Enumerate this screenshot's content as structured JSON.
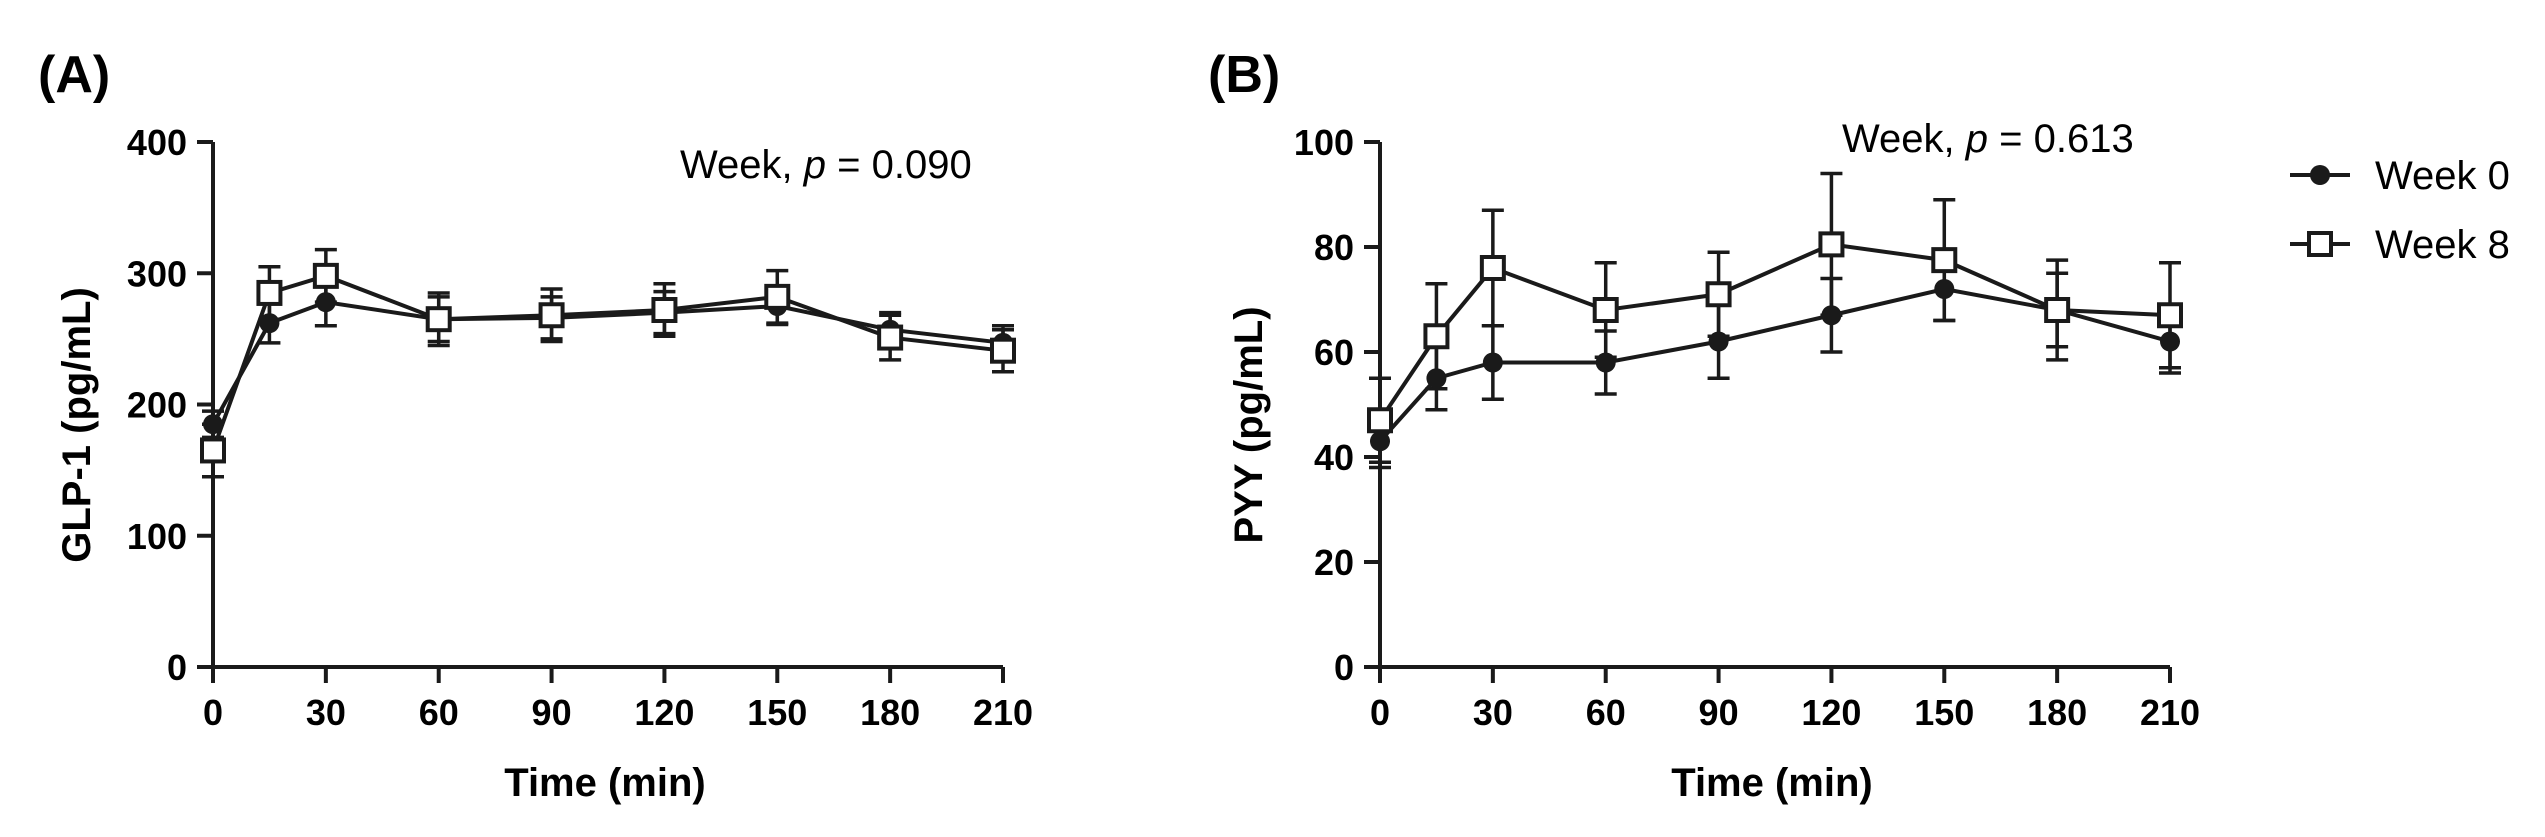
{
  "chart_data": [
    {
      "panel_label": "(A)",
      "type": "line",
      "annotation": {
        "prefix": "Week, ",
        "p_symbol": "p",
        "suffix": " = 0.090"
      },
      "xlabel": "Time (min)",
      "ylabel": "GLP-1 (pg/mL)",
      "xlim": [
        0,
        210
      ],
      "ylim": [
        0,
        400
      ],
      "xticks": [
        0,
        30,
        60,
        90,
        120,
        150,
        180,
        210
      ],
      "yticks": [
        0,
        100,
        200,
        300,
        400
      ],
      "x": [
        0,
        15,
        30,
        60,
        90,
        120,
        150,
        180,
        210
      ],
      "series": [
        {
          "name": "Week 0",
          "marker": "filled-circle",
          "values": [
            185,
            262,
            278,
            265,
            266,
            270,
            275,
            257,
            247
          ],
          "errors": [
            10,
            15,
            18,
            17,
            16,
            16,
            14,
            13,
            13
          ]
        },
        {
          "name": "Week 8",
          "marker": "open-square",
          "values": [
            165,
            285,
            298,
            265,
            268,
            272,
            282,
            251,
            241
          ],
          "errors": [
            20,
            20,
            20,
            20,
            20,
            20,
            20,
            17,
            16
          ]
        }
      ]
    },
    {
      "panel_label": "(B)",
      "type": "line",
      "annotation": {
        "prefix": "Week, ",
        "p_symbol": "p",
        "suffix": " = 0.613"
      },
      "xlabel": "Time (min)",
      "ylabel": "PYY (pg/mL)",
      "xlim": [
        0,
        210
      ],
      "ylim": [
        0,
        100
      ],
      "xticks": [
        0,
        30,
        60,
        90,
        120,
        150,
        180,
        210
      ],
      "yticks": [
        0,
        20,
        40,
        60,
        80,
        100
      ],
      "x": [
        0,
        15,
        30,
        60,
        90,
        120,
        150,
        180,
        210
      ],
      "series": [
        {
          "name": "Week 0",
          "marker": "filled-circle",
          "values": [
            43,
            55,
            58,
            58,
            62,
            67,
            72,
            68,
            62
          ],
          "errors": [
            5,
            6,
            7,
            6,
            7,
            7,
            6,
            7,
            6
          ]
        },
        {
          "name": "Week 8",
          "marker": "open-square",
          "values": [
            47,
            63,
            76,
            68,
            71,
            80.5,
            77.5,
            68,
            67
          ],
          "errors": [
            8,
            10,
            11,
            9,
            8,
            13.5,
            11.5,
            9.5,
            10
          ]
        }
      ]
    }
  ],
  "legend": {
    "placement": "right",
    "items": [
      {
        "label": "Week 0",
        "marker": "filled-circle"
      },
      {
        "label": "Week 8",
        "marker": "open-square"
      }
    ]
  },
  "colors": {
    "line": "#1a1a1a",
    "background": "#ffffff"
  }
}
